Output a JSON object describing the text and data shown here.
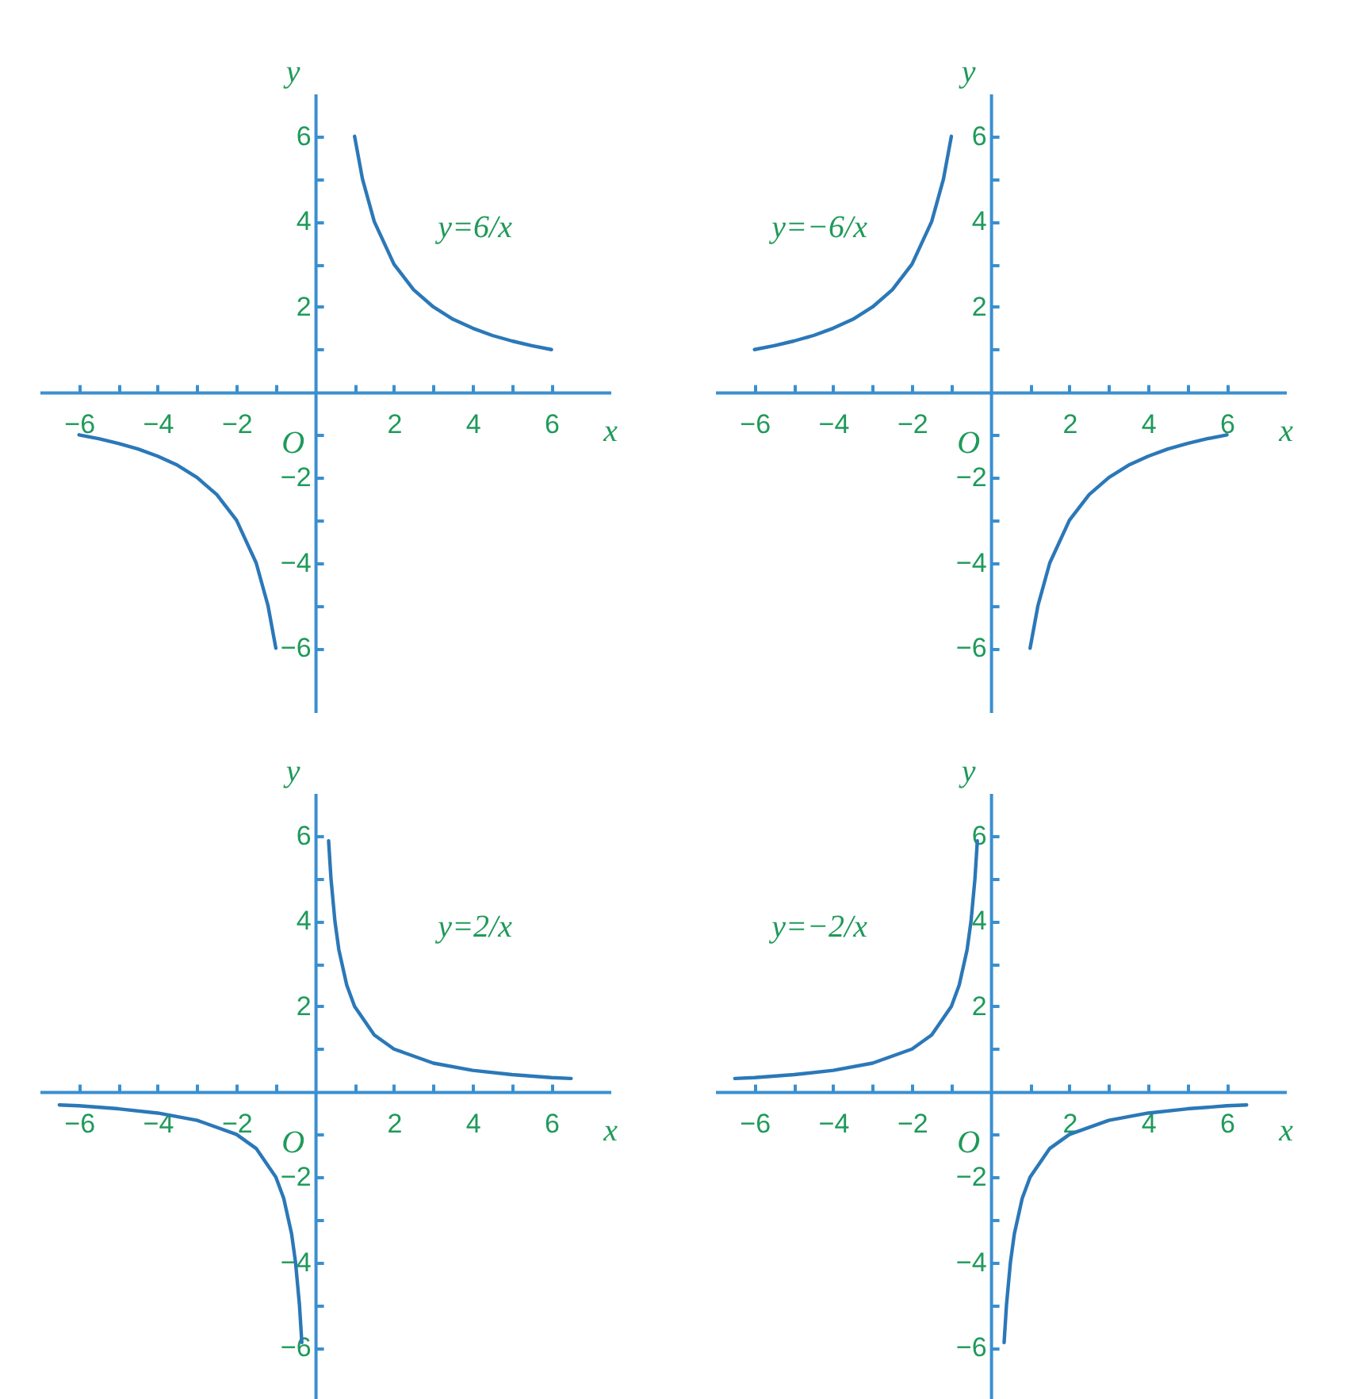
{
  "chart_data": [
    {
      "type": "line",
      "xlabel": "x",
      "ylabel": "y",
      "xlim": [
        -7,
        7.5
      ],
      "ylim": [
        -7.5,
        7
      ],
      "xticks": [
        -6,
        {
          "value": -5,
          "label": null
        },
        -4,
        {
          "value": -3,
          "label": null
        },
        -2,
        {
          "value": -1,
          "label": null
        },
        {
          "value": 1,
          "label": null
        },
        2,
        {
          "value": 3,
          "label": null
        },
        4,
        {
          "value": 5,
          "label": null
        },
        6
      ],
      "yticks": [
        -6,
        {
          "value": -5,
          "label": null
        },
        -4,
        {
          "value": -3,
          "label": null
        },
        -2,
        {
          "value": -1,
          "label": null
        },
        {
          "value": 1,
          "label": null
        },
        2,
        {
          "value": 3,
          "label": null
        },
        4,
        {
          "value": 5,
          "label": null
        },
        6
      ],
      "series": [
        {
          "color": "#2b78b8",
          "x": [
            1,
            1.2,
            1.5,
            2,
            2.5,
            3,
            3.5,
            4,
            4.5,
            5,
            5.5,
            6
          ],
          "values": [
            6,
            5,
            4,
            3,
            2.4,
            2,
            1.71,
            1.5,
            1.33,
            1.2,
            1.09,
            1
          ]
        },
        {
          "color": "#2b78b8",
          "x": [
            -6,
            -5.5,
            -5,
            -4.5,
            -4,
            -3.5,
            -3,
            -2.5,
            -2,
            -1.5,
            -1.2,
            -1
          ],
          "values": [
            -1,
            -1.09,
            -1.2,
            -1.33,
            -1.5,
            -1.71,
            -2,
            -2.4,
            -3,
            -4,
            -5,
            -6
          ]
        }
      ],
      "annotations": [
        "y=6/x",
        "O"
      ]
    },
    {
      "type": "line",
      "xlabel": "x",
      "ylabel": "y",
      "xlim": [
        -7,
        7.5
      ],
      "ylim": [
        -7.5,
        7
      ],
      "xticks": [
        -6,
        {
          "value": -5,
          "label": null
        },
        -4,
        {
          "value": -3,
          "label": null
        },
        -2,
        {
          "value": -1,
          "label": null
        },
        {
          "value": 1,
          "label": null
        },
        2,
        {
          "value": 3,
          "label": null
        },
        4,
        {
          "value": 5,
          "label": null
        },
        6
      ],
      "yticks": [
        -6,
        {
          "value": -5,
          "label": null
        },
        -4,
        {
          "value": -3,
          "label": null
        },
        -2,
        {
          "value": -1,
          "label": null
        },
        {
          "value": 1,
          "label": null
        },
        2,
        {
          "value": 3,
          "label": null
        },
        4,
        {
          "value": 5,
          "label": null
        },
        6
      ],
      "series": [
        {
          "color": "#2b78b8",
          "x": [
            -6,
            -5.5,
            -5,
            -4.5,
            -4,
            -3.5,
            -3,
            -2.5,
            -2,
            -1.5,
            -1.2,
            -1
          ],
          "values": [
            1,
            1.09,
            1.2,
            1.33,
            1.5,
            1.71,
            2,
            2.4,
            3,
            4,
            5,
            6
          ]
        },
        {
          "color": "#2b78b8",
          "x": [
            1,
            1.2,
            1.5,
            2,
            2.5,
            3,
            3.5,
            4,
            4.5,
            5,
            5.5,
            6
          ],
          "values": [
            -6,
            -5,
            -4,
            -3,
            -2.4,
            -2,
            -1.71,
            -1.5,
            -1.33,
            -1.2,
            -1.09,
            -1
          ]
        }
      ],
      "annotations": [
        "y=−6/x",
        "O"
      ]
    },
    {
      "type": "line",
      "xlabel": "x",
      "ylabel": "y",
      "xlim": [
        -7,
        7.5
      ],
      "ylim": [
        -7.5,
        7
      ],
      "xticks": [
        -6,
        {
          "value": -5,
          "label": null
        },
        -4,
        {
          "value": -3,
          "label": null
        },
        -2,
        {
          "value": -1,
          "label": null
        },
        {
          "value": 1,
          "label": null
        },
        2,
        {
          "value": 3,
          "label": null
        },
        4,
        {
          "value": 5,
          "label": null
        },
        6
      ],
      "yticks": [
        -6,
        {
          "value": -5,
          "label": null
        },
        -4,
        {
          "value": -3,
          "label": null
        },
        -2,
        {
          "value": -1,
          "label": null
        },
        {
          "value": 1,
          "label": null
        },
        2,
        {
          "value": 3,
          "label": null
        },
        4,
        {
          "value": 5,
          "label": null
        },
        6
      ],
      "series": [
        {
          "color": "#2b78b8",
          "x": [
            0.34,
            0.4,
            0.5,
            0.6,
            0.8,
            1,
            1.5,
            2,
            3,
            4,
            5,
            6,
            6.5
          ],
          "values": [
            5.88,
            5,
            4,
            3.33,
            2.5,
            2,
            1.33,
            1,
            0.67,
            0.5,
            0.4,
            0.33,
            0.31
          ]
        },
        {
          "color": "#2b78b8",
          "x": [
            -6.5,
            -6,
            -5,
            -4,
            -3,
            -2,
            -1.5,
            -1,
            -0.8,
            -0.6,
            -0.5,
            -0.4,
            -0.34
          ],
          "values": [
            -0.31,
            -0.33,
            -0.4,
            -0.5,
            -0.67,
            -1,
            -1.33,
            -2,
            -2.5,
            -3.33,
            -4,
            -5,
            -5.88
          ]
        }
      ],
      "annotations": [
        "y=2/x",
        "O"
      ]
    },
    {
      "type": "line",
      "xlabel": "x",
      "ylabel": "y",
      "xlim": [
        -7,
        7.5
      ],
      "ylim": [
        -7.5,
        7
      ],
      "xticks": [
        -6,
        {
          "value": -5,
          "label": null
        },
        -4,
        {
          "value": -3,
          "label": null
        },
        -2,
        {
          "value": -1,
          "label": null
        },
        {
          "value": 1,
          "label": null
        },
        2,
        {
          "value": 3,
          "label": null
        },
        4,
        {
          "value": 5,
          "label": null
        },
        6
      ],
      "yticks": [
        -6,
        {
          "value": -5,
          "label": null
        },
        -4,
        {
          "value": -3,
          "label": null
        },
        -2,
        {
          "value": -1,
          "label": null
        },
        {
          "value": 1,
          "label": null
        },
        2,
        {
          "value": 3,
          "label": null
        },
        4,
        {
          "value": 5,
          "label": null
        },
        6
      ],
      "series": [
        {
          "color": "#2b78b8",
          "x": [
            -6.5,
            -6,
            -5,
            -4,
            -3,
            -2,
            -1.5,
            -1,
            -0.8,
            -0.6,
            -0.5,
            -0.4,
            -0.34
          ],
          "values": [
            0.31,
            0.33,
            0.4,
            0.5,
            0.67,
            1,
            1.33,
            2,
            2.5,
            3.33,
            4,
            5,
            5.88
          ]
        },
        {
          "color": "#2b78b8",
          "x": [
            0.34,
            0.4,
            0.5,
            0.6,
            0.8,
            1,
            1.5,
            2,
            3,
            4,
            5,
            6,
            6.5
          ],
          "values": [
            -5.88,
            -5,
            -4,
            -3.33,
            -2.5,
            -2,
            -1.33,
            -1,
            -0.67,
            -0.5,
            -0.4,
            -0.33,
            -0.31
          ]
        }
      ],
      "annotations": [
        "y=−2/x",
        "O"
      ]
    }
  ]
}
